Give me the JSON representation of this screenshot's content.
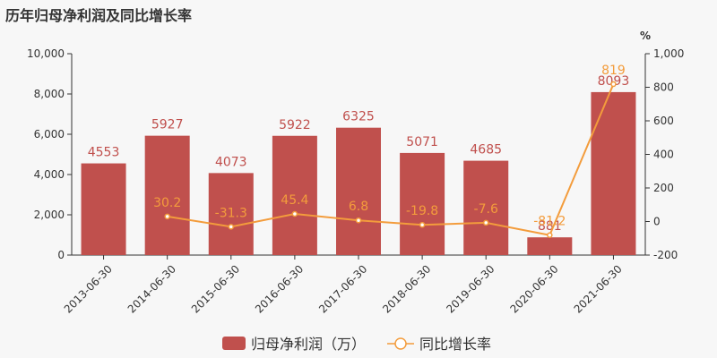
{
  "chart_data": {
    "type": "bar+line",
    "title": "历年归母净利润及同比增长率",
    "categories": [
      "2013-06-30",
      "2014-06-30",
      "2015-06-30",
      "2016-06-30",
      "2017-06-30",
      "2018-06-30",
      "2019-06-30",
      "2020-06-30",
      "2021-06-30"
    ],
    "series": [
      {
        "name": "归母净利润（万）",
        "type": "bar",
        "axis": "left",
        "color": "#c0504d",
        "values": [
          4553,
          5927,
          4073,
          5922,
          6325,
          5071,
          4685,
          881,
          8093
        ],
        "labels": [
          "4553",
          "5927",
          "4073",
          "5922",
          "6325",
          "5071",
          "4685",
          "881",
          "8093"
        ]
      },
      {
        "name": "同比增长率",
        "type": "line",
        "axis": "right",
        "color": "#f39c3c",
        "values": [
          null,
          30.2,
          -31.3,
          45.4,
          6.8,
          -19.8,
          -7.6,
          -81.2,
          819
        ],
        "labels": [
          "",
          "30.2",
          "-31.3",
          "45.4",
          "6.8",
          "-19.8",
          "-7.6",
          "-81.2",
          "819"
        ]
      }
    ],
    "y_left": {
      "min": 0,
      "max": 10000,
      "ticks": [
        "0",
        "2,000",
        "4,000",
        "6,000",
        "8,000",
        "10,000"
      ]
    },
    "y_right": {
      "min": -200,
      "max": 1000,
      "unit": "%",
      "ticks": [
        "-200",
        "0",
        "200",
        "400",
        "600",
        "800",
        "1,000"
      ]
    },
    "grid": false,
    "legend_position": "bottom"
  }
}
